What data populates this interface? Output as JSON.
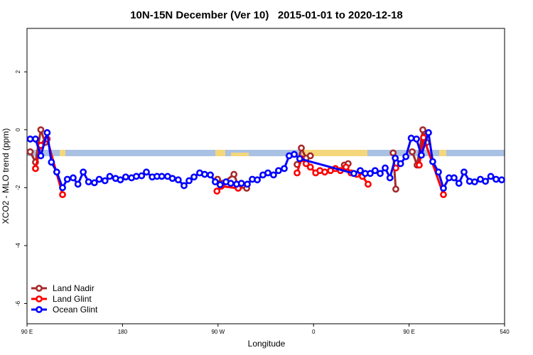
{
  "chart_data": {
    "type": "line",
    "title": "10N-15N December (Ver 10)   2015-01-01 to 2020-12-18",
    "x_label": "Longitude",
    "y_label": "XCO2 - MLO trend (ppm)",
    "xlim": [
      90,
      540
    ],
    "xticks": [
      {
        "value": 90,
        "label": "90 E"
      },
      180,
      {
        "value": 270,
        "label": "90 W"
      },
      {
        "value": 360,
        "label": "0"
      },
      {
        "value": 450,
        "label": "90 E"
      },
      540
    ],
    "ylim": [
      -6.7,
      3.5
    ],
    "yticks": [
      -6,
      -4,
      -2,
      0,
      2
    ],
    "legend": "bottom-left",
    "series": [
      {
        "name": "Land Nadir",
        "color": "#a52a2a",
        "x": [
          93,
          98,
          103,
          107,
          190,
          269.5,
          274,
          285,
          289.5,
          297,
          320,
          344.5,
          348.5,
          353,
          357,
          375,
          389,
          392.6,
          410,
          435,
          437.5,
          445,
          453,
          457.6,
          463,
          466.6
        ],
        "values": [
          -0.76,
          -1.12,
          0,
          -0.44,
          null,
          -1.71,
          -1.85,
          -1.54,
          -1.98,
          -2.02,
          null,
          -1.2,
          -0.63,
          -0.98,
          -0.9,
          null,
          -1.22,
          -1.17,
          null,
          -0.8,
          -2.05,
          null,
          -0.76,
          -1.22,
          0,
          -0.44
        ]
      },
      {
        "name": "Land Glint",
        "color": "#ff0000",
        "x": [
          98,
          103,
          109,
          123.5,
          190,
          269,
          273,
          289,
          320,
          344.5,
          348.5,
          353,
          357,
          362,
          366,
          370.6,
          376,
          380.6,
          385.3,
          390.6,
          395.3,
          400.7,
          406,
          411.4,
          425,
          437.5,
          450,
          459.6,
          463.6,
          482.4
        ],
        "values": [
          -1.34,
          -0.54,
          -0.32,
          -2.24,
          null,
          -2.12,
          -1.95,
          -2.02,
          null,
          -1.49,
          -1.0,
          -1.17,
          -1.29,
          -1.49,
          -1.41,
          -1.46,
          -1.41,
          -1.34,
          -1.41,
          -1.29,
          -1.49,
          -1.54,
          -1.61,
          -1.88,
          null,
          -1.32,
          null,
          -1.22,
          -0.27,
          -2.24
        ]
      },
      {
        "name": "Ocean Glint",
        "color": "#0000ff",
        "x": [
          93,
          98,
          103,
          109,
          113,
          118,
          123.5,
          128,
          133.5,
          138,
          143,
          148,
          153.5,
          158,
          163.5,
          168,
          173.5,
          178,
          183,
          188.5,
          193,
          198,
          202.5,
          208,
          212.5,
          217,
          222.5,
          227,
          232.5,
          238,
          242.7,
          247.4,
          252.7,
          257.4,
          262.8,
          267.4,
          272,
          277.5,
          282,
          287.5,
          292,
          297.6,
          302.3,
          307,
          312.3,
          317,
          322.3,
          327,
          332.4,
          337,
          341.8,
          347,
          398,
          404,
          408.7,
          413.4,
          418,
          422.8,
          427.5,
          432,
          437,
          442,
          447,
          452,
          457,
          461.6,
          468.3,
          472.3,
          477.7,
          482.4,
          487.7,
          492.4,
          497,
          501.8,
          507,
          511.8,
          517.2,
          522,
          527,
          532,
          537.3
        ],
        "values": [
          -0.32,
          -0.32,
          -0.9,
          -0.1,
          -1.12,
          -1.46,
          -2.0,
          -1.71,
          -1.66,
          -1.88,
          -1.46,
          -1.8,
          -1.83,
          -1.71,
          -1.76,
          -1.61,
          -1.68,
          -1.73,
          -1.63,
          -1.66,
          -1.61,
          -1.59,
          -1.46,
          -1.63,
          -1.61,
          -1.61,
          -1.61,
          -1.68,
          -1.73,
          -1.93,
          -1.76,
          -1.63,
          -1.49,
          -1.54,
          -1.56,
          -1.8,
          -1.9,
          -1.8,
          -1.85,
          -1.88,
          -1.85,
          -1.88,
          -1.71,
          -1.73,
          -1.56,
          -1.49,
          -1.56,
          -1.41,
          -1.34,
          -0.9,
          -0.85,
          -1.0,
          -1.51,
          -1.41,
          -1.51,
          -1.51,
          -1.41,
          -1.51,
          -1.32,
          -1.66,
          -0.98,
          -1.17,
          -0.93,
          -0.29,
          -0.32,
          -0.88,
          -0.1,
          -1.1,
          -1.46,
          -2.02,
          -1.66,
          -1.66,
          -1.85,
          -1.46,
          -1.78,
          -1.8,
          -1.71,
          -1.78,
          -1.61,
          -1.71,
          -1.73
        ]
      }
    ]
  }
}
